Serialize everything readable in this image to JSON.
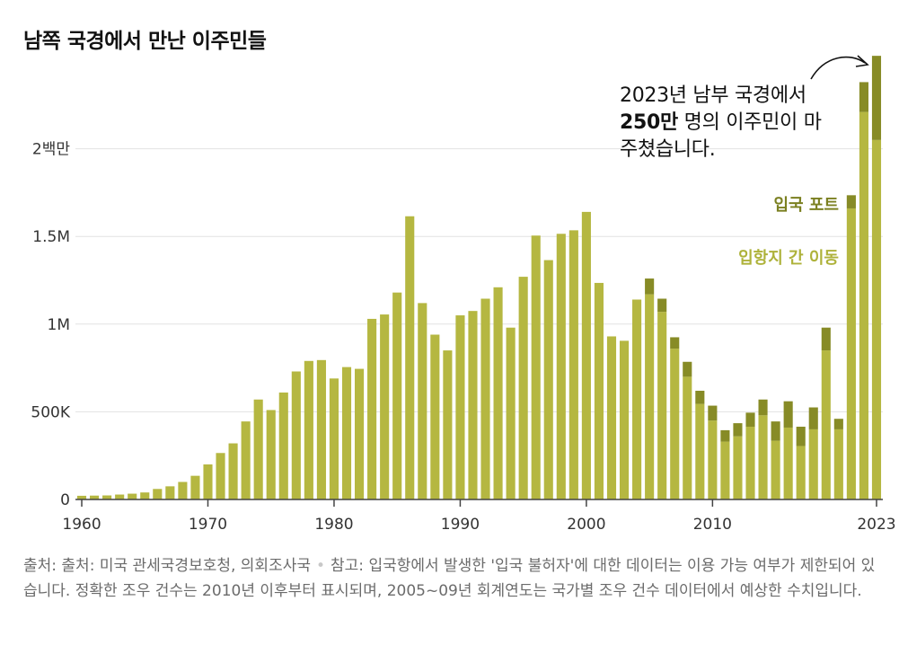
{
  "title": "남쪽 국경에서 만난 이주민들",
  "annotation": {
    "prefix": "2023년 남부 국경에서 ",
    "bold": "250만",
    "suffix": " 명의 이주민이 마주쳤습니다."
  },
  "legend": {
    "port": "입국 포트",
    "between": "입항지 간 이동"
  },
  "footer": {
    "source": "출처: 출처: 미국 관세국경보호청, 의회조사국",
    "separator": "•",
    "note": "참고: 입국항에서 발생한 '입국 불허자'에 대한 데이터는 이용 가능 여부가 제한되어 있습니다. 정확한 조우 건수는 2010년 이후부터 표시되며, 2005~09년 회계연도는 국가별 조우 건수 데이터에서 예상한 수치입니다."
  },
  "colors": {
    "between": "#b5b741",
    "port": "#878b26",
    "arrow": "#121212"
  },
  "chart_data": {
    "type": "bar",
    "stacked": true,
    "x_tick_labels": [
      "1960",
      "1970",
      "1980",
      "1990",
      "2000",
      "2010",
      "2023"
    ],
    "y_tick_labels": [
      "0",
      "500K",
      "1M",
      "1.5M",
      "2백만"
    ],
    "y_ticks": [
      0,
      500000,
      1000000,
      1500000,
      2000000
    ],
    "ylim": [
      0,
      2500000
    ],
    "grid": true,
    "x": [
      1960,
      1961,
      1962,
      1963,
      1964,
      1965,
      1966,
      1967,
      1968,
      1969,
      1970,
      1971,
      1972,
      1973,
      1974,
      1975,
      1976,
      1977,
      1978,
      1979,
      1980,
      1981,
      1982,
      1983,
      1984,
      1985,
      1986,
      1987,
      1988,
      1989,
      1990,
      1991,
      1992,
      1993,
      1994,
      1995,
      1996,
      1997,
      1998,
      1999,
      2000,
      2001,
      2002,
      2003,
      2004,
      2005,
      2006,
      2007,
      2008,
      2009,
      2010,
      2011,
      2012,
      2013,
      2014,
      2015,
      2016,
      2017,
      2018,
      2019,
      2020,
      2021,
      2022,
      2023
    ],
    "series": [
      {
        "name": "입항지 간 이동",
        "values": [
          21000,
          22000,
          23000,
          28000,
          33000,
          40000,
          60000,
          75000,
          100000,
          135000,
          200000,
          265000,
          320000,
          445000,
          570000,
          510000,
          610000,
          730000,
          790000,
          795000,
          690000,
          755000,
          745000,
          1030000,
          1055000,
          1180000,
          1615000,
          1120000,
          940000,
          850000,
          1050000,
          1075000,
          1145000,
          1210000,
          980000,
          1270000,
          1505000,
          1365000,
          1515000,
          1535000,
          1640000,
          1235000,
          930000,
          905000,
          1140000,
          1170000,
          1070000,
          860000,
          700000,
          545000,
          450000,
          330000,
          360000,
          415000,
          480000,
          335000,
          410000,
          305000,
          400000,
          850000,
          400000,
          1660000,
          2210000,
          2050000
        ]
      },
      {
        "name": "입국 포트",
        "values": [
          0,
          0,
          0,
          0,
          0,
          0,
          0,
          0,
          0,
          0,
          0,
          0,
          0,
          0,
          0,
          0,
          0,
          0,
          0,
          0,
          0,
          0,
          0,
          0,
          0,
          0,
          0,
          0,
          0,
          0,
          0,
          0,
          0,
          0,
          0,
          0,
          0,
          0,
          0,
          0,
          0,
          0,
          0,
          0,
          0,
          90000,
          75000,
          65000,
          85000,
          75000,
          85000,
          65000,
          75000,
          80000,
          90000,
          110000,
          150000,
          110000,
          125000,
          130000,
          60000,
          75000,
          170000,
          480000
        ]
      }
    ]
  }
}
